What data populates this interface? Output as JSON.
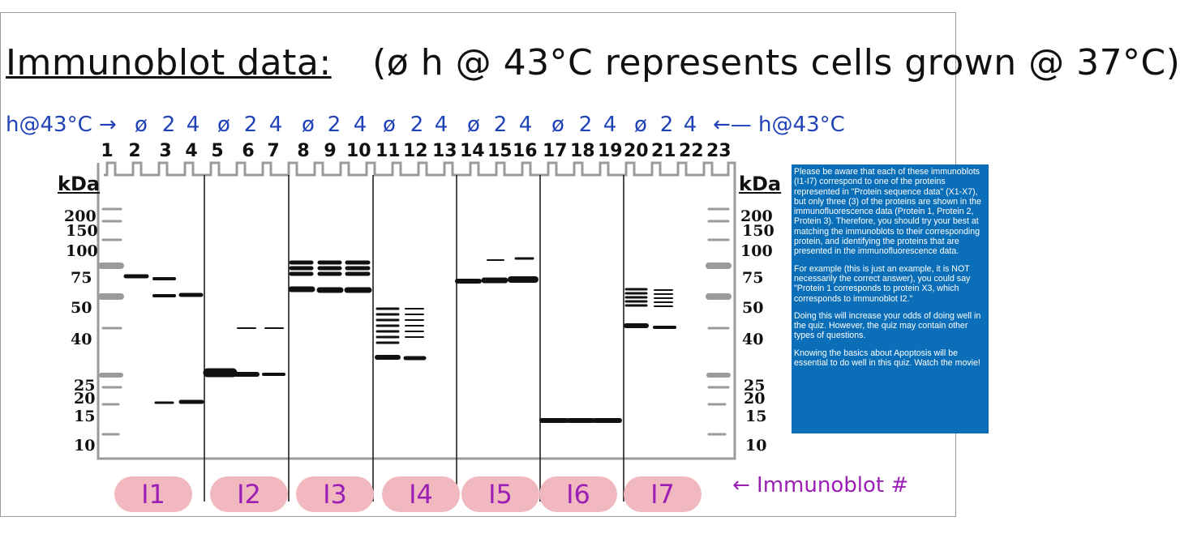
{
  "title": {
    "main": "Immunoblot data:",
    "sub": "(ø h @ 43°C represents cells grown @ 37°C)"
  },
  "hours_label_left": "h@43°C →",
  "hours_label_right": "←— h@43°C",
  "hours": [
    "ø",
    "2",
    "4",
    "ø",
    "2",
    "4",
    "ø",
    "2",
    "4",
    "ø",
    "2",
    "4",
    "ø",
    "2",
    "4",
    "ø",
    "2",
    "4",
    "ø",
    "2",
    "4"
  ],
  "lanes": [
    "1",
    "2",
    "3",
    "4",
    "5",
    "6",
    "7",
    "8",
    "9",
    "10",
    "11",
    "12",
    "13",
    "14",
    "15",
    "16",
    "17",
    "18",
    "19",
    "20",
    "21",
    "22",
    "23"
  ],
  "kda_header": "kDa",
  "kda_markers": [
    "200",
    "150",
    "100",
    "75",
    "50",
    "40",
    "25",
    "20",
    "15",
    "10"
  ],
  "blots": [
    "I1",
    "I2",
    "I3",
    "I4",
    "I5",
    "I6",
    "I7"
  ],
  "blot_pointer_label": "← Immunoblot #",
  "note": {
    "p1": "Please be aware that each of these immunoblots (I1-I7) correspond to one of the proteins represented in \"Protein sequence data\" (X1-X7),   but only three (3) of the proteins are shown in the immunofluorescence data (Protein 1, Protein 2, Protein 3). Therefore, you should try your best at matching the immunoblots to their corresponding protein, and identifying the proteins that are presented in the immunofluorescence data.",
    "p2": "For example (this is just an example, it is NOT necessarily the correct answer), you could say \"Protein 1 corresponds to protein X3, which corresponds to immunoblot I2.\"",
    "p3": "Doing this will increase your odds of doing well in the quiz. However, the quiz may contain other types of questions.",
    "p4": "Knowing the basics about Apoptosis will be essential to do well in this quiz. Watch the movie!"
  },
  "colors": {
    "ink": "#111111",
    "hours_blue": "#2042b8",
    "blot_label_purple": "#9b1fb5",
    "blot_label_bg": "#f2b8c0",
    "ladder_gray": "#9a9a9a",
    "note_bg": "#0b6eb8"
  }
}
